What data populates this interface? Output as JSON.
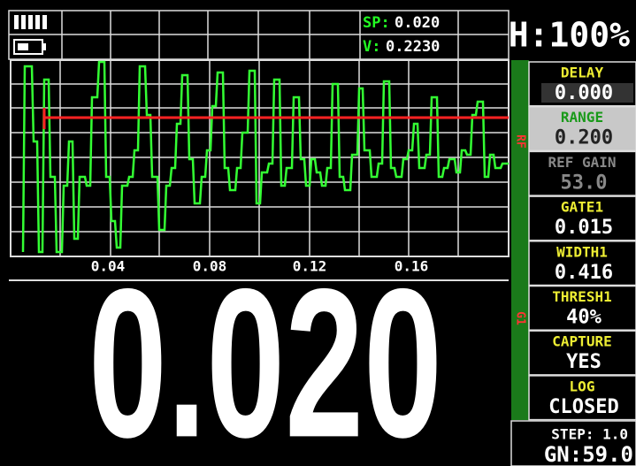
{
  "status": {
    "sp_label": "SP:",
    "sp_value": "0.020",
    "v_label": "V:",
    "v_value": "0.2230"
  },
  "header": {
    "gain": "H:100%"
  },
  "waveform": {
    "x_ticks": [
      "0.04",
      "0.08",
      "0.12",
      "0.16"
    ],
    "side_labels": [
      "RF",
      "G1"
    ]
  },
  "reading": "0.020",
  "menu": [
    {
      "label": "DELAY",
      "value": "0.000"
    },
    {
      "label": "RANGE",
      "value": "0.200"
    },
    {
      "label": "REF GAIN",
      "value": "53.0"
    },
    {
      "label": "GATE1",
      "value": "0.015"
    },
    {
      "label": "WIDTH1",
      "value": "0.416"
    },
    {
      "label": "THRESH1",
      "value": "40%"
    },
    {
      "label": "CAPTURE",
      "value": "YES"
    },
    {
      "label": "LOG",
      "value": "CLOSED"
    }
  ],
  "footer": {
    "step": "STEP: 1.0",
    "gn": "GN:59.0"
  }
}
